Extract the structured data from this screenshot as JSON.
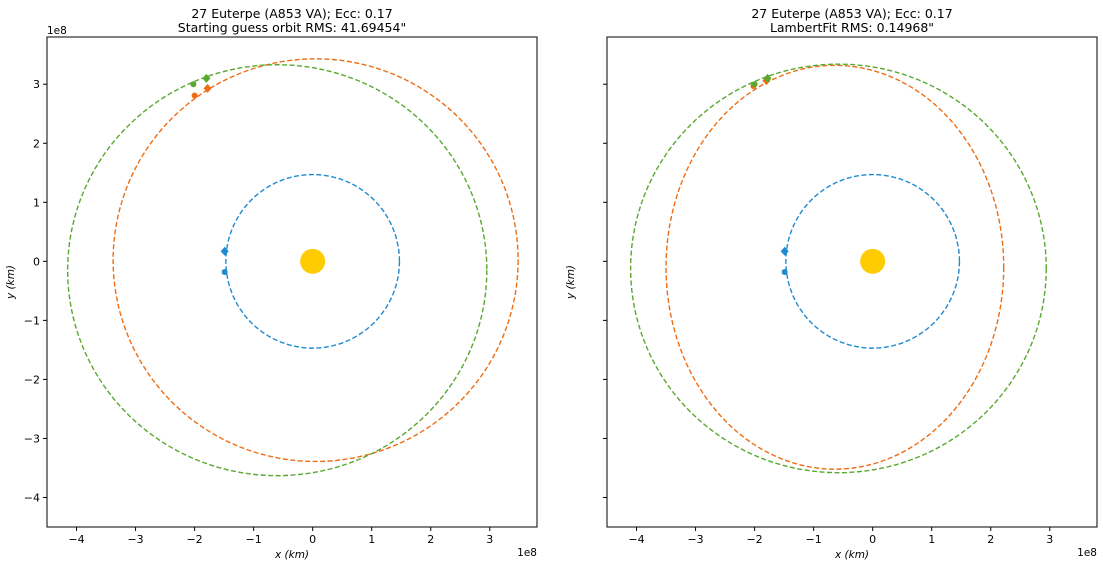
{
  "chart_data": [
    {
      "type": "scatter",
      "title_line1": "27 Euterpe (A853 VA); Ecc: 0.17",
      "title_line2": "Starting guess orbit RMS: 41.69454\"",
      "xlabel": "x (km)",
      "ylabel": "y (km)",
      "x_offset_label": "1e8",
      "y_offset_label": "1e8",
      "xlim": [
        -4.5,
        3.8
      ],
      "ylim": [
        -4.5,
        3.8
      ],
      "xticks": [
        -4,
        -3,
        -2,
        -1,
        0,
        1,
        2,
        3
      ],
      "yticks": [
        -4,
        -3,
        -2,
        -1,
        0,
        1,
        2,
        3
      ],
      "xtick_labels": [
        "−4",
        "−3",
        "−2",
        "−1",
        "0",
        "1",
        "2",
        "3"
      ],
      "ytick_labels": [
        "−4",
        "−3",
        "−2",
        "−1",
        "0",
        "1",
        "2",
        "3"
      ],
      "show_yticklabels": true,
      "sun": {
        "x": 0,
        "y": 0,
        "color": "#ffcc00"
      },
      "orbits": [
        {
          "color": "#1f8ad1",
          "center": [
            0,
            0
          ],
          "rx": 1.47,
          "ry": 1.47
        },
        {
          "color": "#ee6d15",
          "center": [
            0.05,
            0.02
          ],
          "rx": 3.43,
          "ry": 3.41
        },
        {
          "color": "#59a830",
          "center": [
            -0.6,
            -0.15
          ],
          "rx": 3.55,
          "ry": 3.48
        }
      ],
      "markers": [
        {
          "color": "#1f8ad1",
          "shape": "diamond",
          "x": -1.49,
          "y": 0.17
        },
        {
          "color": "#1f8ad1",
          "shape": "circle",
          "x": -1.49,
          "y": -0.18
        },
        {
          "color": "#ee6d15",
          "shape": "diamond",
          "x": -1.78,
          "y": 2.93
        },
        {
          "color": "#ee6d15",
          "shape": "circle",
          "x": -2.0,
          "y": 2.81
        },
        {
          "color": "#59a830",
          "shape": "diamond",
          "x": -1.8,
          "y": 3.1
        },
        {
          "color": "#59a830",
          "shape": "circle",
          "x": -2.02,
          "y": 3.0
        }
      ]
    },
    {
      "type": "scatter",
      "title_line1": "27 Euterpe (A853 VA); Ecc: 0.17",
      "title_line2": "LambertFit RMS: 0.14968\"",
      "xlabel": "x (km)",
      "ylabel": "y (km)",
      "x_offset_label": "1e8",
      "y_offset_label": "",
      "xlim": [
        -4.5,
        3.8
      ],
      "ylim": [
        -4.5,
        3.8
      ],
      "xticks": [
        -4,
        -3,
        -2,
        -1,
        0,
        1,
        2,
        3
      ],
      "yticks": [
        -4,
        -3,
        -2,
        -1,
        0,
        1,
        2,
        3
      ],
      "xtick_labels": [
        "−4",
        "−3",
        "−2",
        "−1",
        "0",
        "1",
        "2",
        "3"
      ],
      "ytick_labels": [],
      "show_yticklabels": false,
      "sun": {
        "x": 0,
        "y": 0,
        "color": "#ffcc00"
      },
      "orbits": [
        {
          "color": "#1f8ad1",
          "center": [
            0,
            0
          ],
          "rx": 1.47,
          "ry": 1.47
        },
        {
          "color": "#ee6d15",
          "center": [
            -0.64,
            -0.1
          ],
          "rx": 2.86,
          "ry": 3.42
        },
        {
          "color": "#59a830",
          "center": [
            -0.58,
            -0.12
          ],
          "rx": 3.52,
          "ry": 3.46
        }
      ],
      "markers": [
        {
          "color": "#1f8ad1",
          "shape": "diamond",
          "x": -1.49,
          "y": 0.17
        },
        {
          "color": "#1f8ad1",
          "shape": "circle",
          "x": -1.49,
          "y": -0.18
        },
        {
          "color": "#ee6d15",
          "shape": "diamond",
          "x": -1.8,
          "y": 3.06
        },
        {
          "color": "#ee6d15",
          "shape": "circle",
          "x": -2.02,
          "y": 2.97
        },
        {
          "color": "#59a830",
          "shape": "diamond",
          "x": -1.78,
          "y": 3.1
        },
        {
          "color": "#59a830",
          "shape": "circle",
          "x": -2.0,
          "y": 3.0
        }
      ]
    }
  ]
}
